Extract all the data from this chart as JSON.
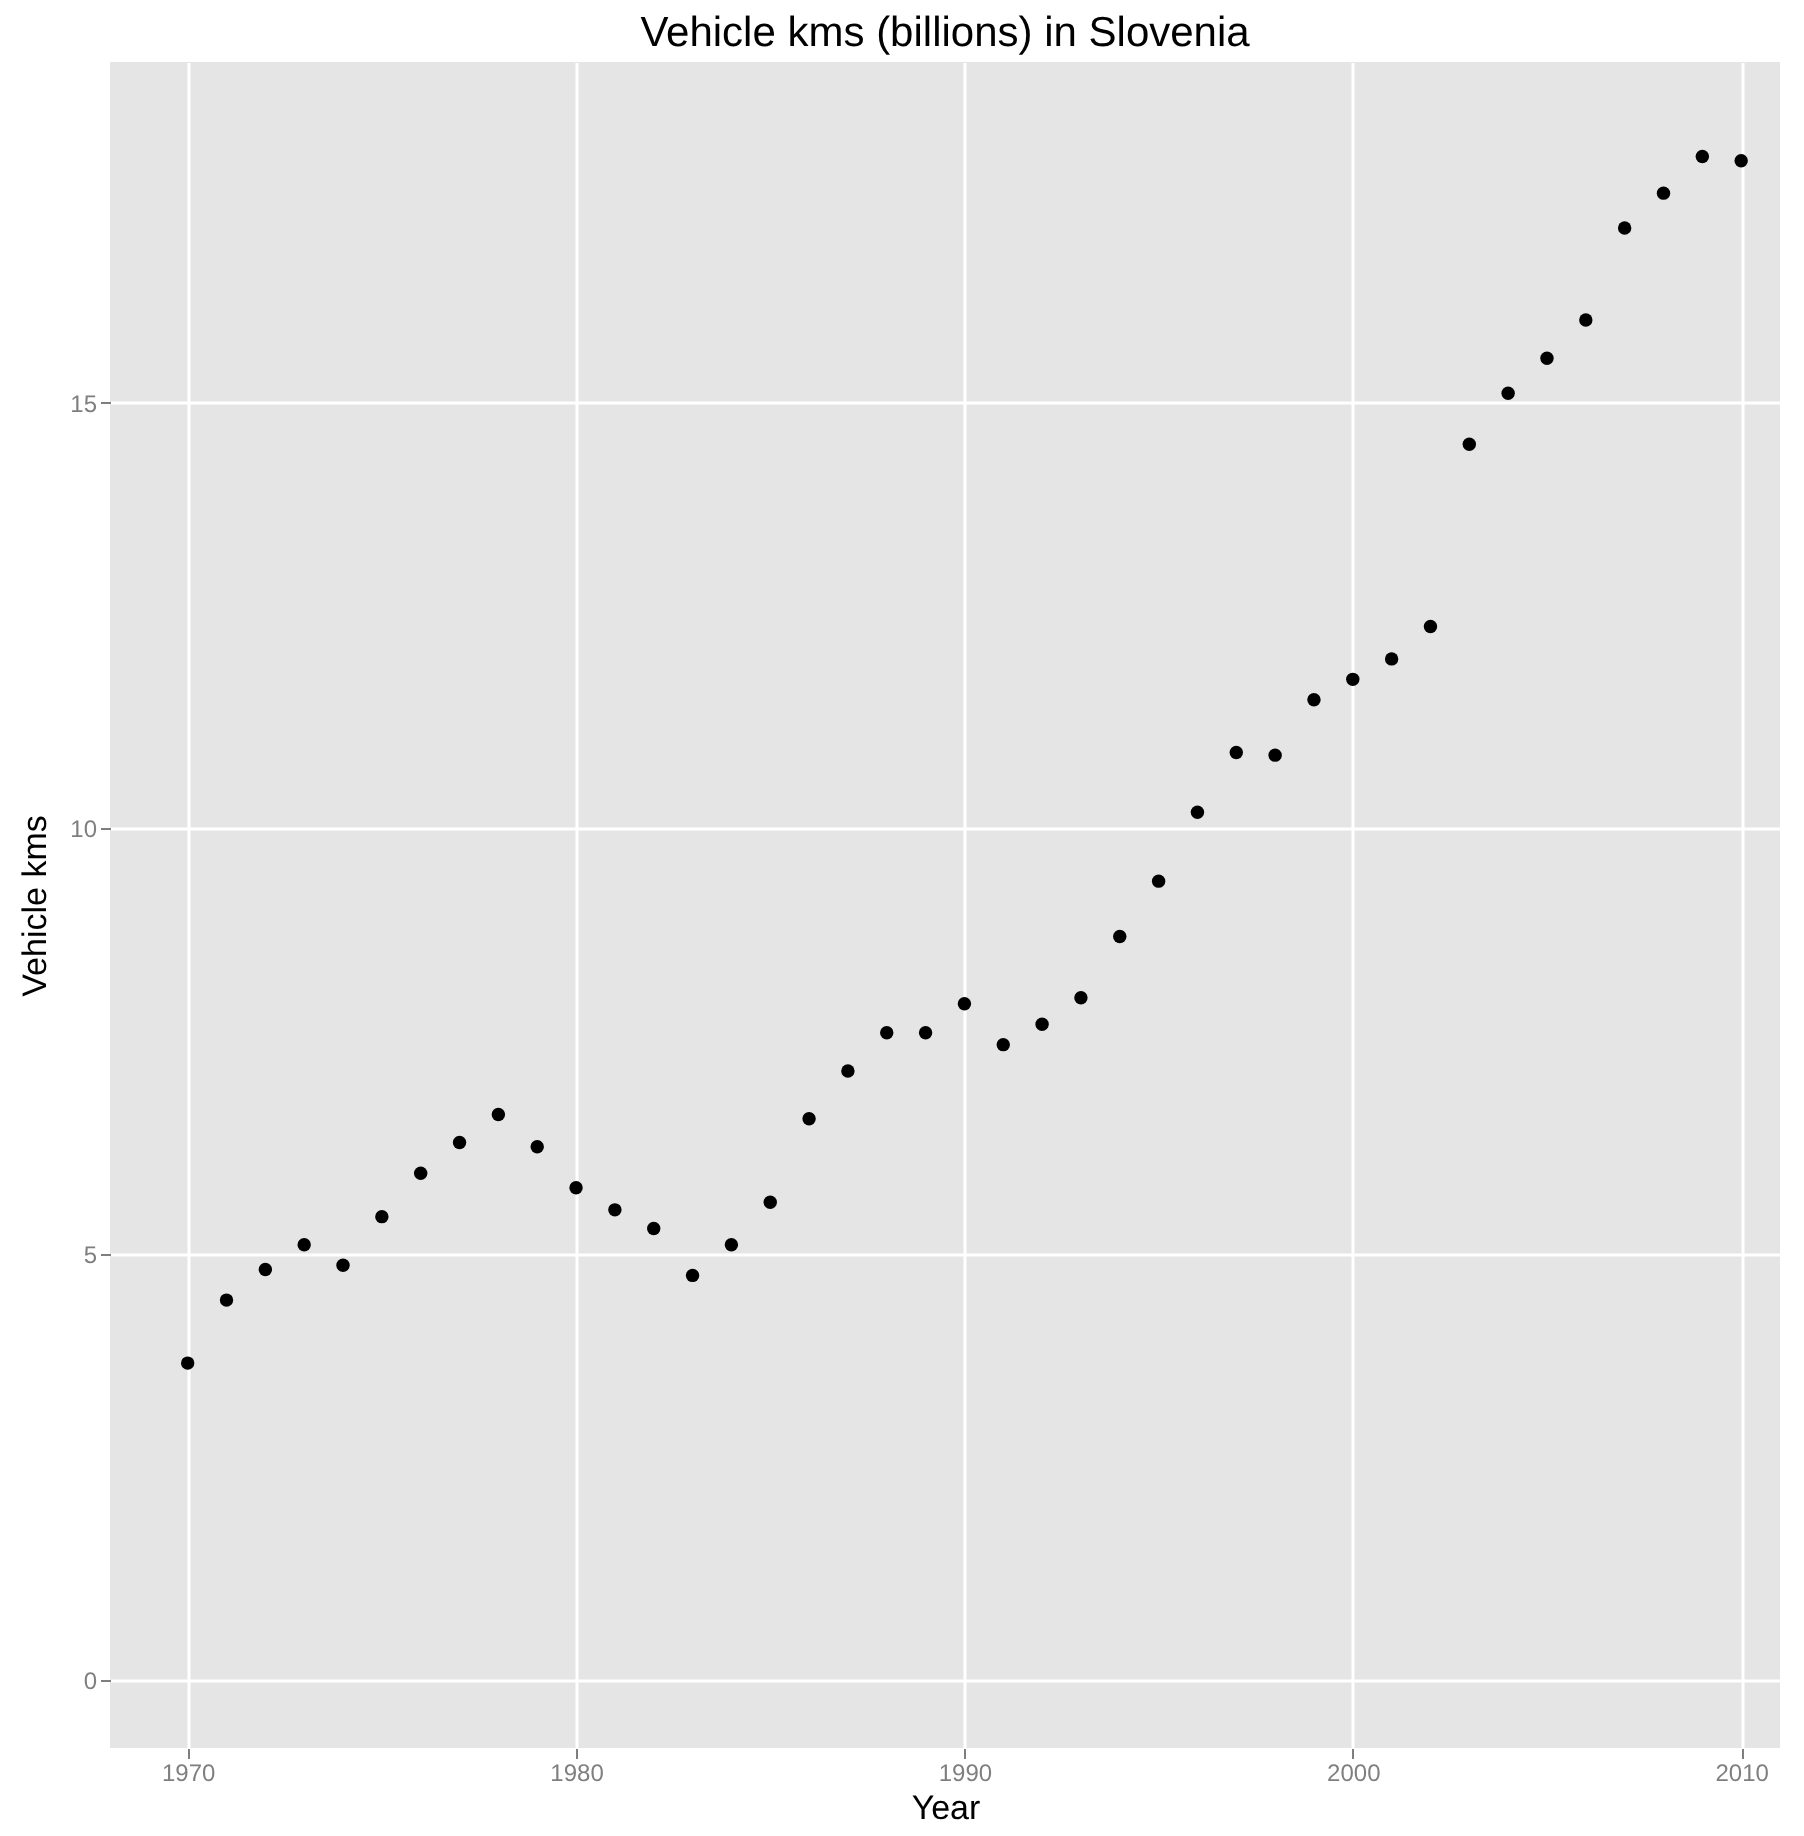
{
  "chart_data": {
    "type": "scatter",
    "title": "Vehicle kms (billions) in Slovenia",
    "xlabel": "Year",
    "ylabel": "Vehicle kms",
    "x": [
      1970,
      1971,
      1972,
      1973,
      1974,
      1975,
      1976,
      1977,
      1978,
      1979,
      1980,
      1981,
      1982,
      1983,
      1984,
      1985,
      1986,
      1987,
      1988,
      1989,
      1990,
      1991,
      1992,
      1993,
      1994,
      1995,
      1996,
      1997,
      1998,
      1999,
      2000,
      2001,
      2002,
      2003,
      2004,
      2005,
      2006,
      2007,
      2008,
      2009,
      2010
    ],
    "series": [
      {
        "color": "#000000",
        "values": [
          3.72,
          4.46,
          4.82,
          5.11,
          4.87,
          5.44,
          5.95,
          6.31,
          6.64,
          6.26,
          5.78,
          5.52,
          5.3,
          4.75,
          5.11,
          5.61,
          6.59,
          7.15,
          7.6,
          7.6,
          7.94,
          7.46,
          7.7,
          8.01,
          8.73,
          9.38,
          10.19,
          10.89,
          10.86,
          11.51,
          11.75,
          11.99,
          12.37,
          14.51,
          15.11,
          15.52,
          15.97,
          17.05,
          17.46,
          17.89,
          17.84
        ]
      }
    ],
    "xlim": [
      1968,
      2011
    ],
    "xticks": [
      1970,
      1980,
      1990,
      2000,
      2010
    ],
    "ylim": [
      -0.8,
      19
    ],
    "yticks": [
      0,
      5,
      10,
      15
    ],
    "grid": true,
    "marker": "circle"
  }
}
